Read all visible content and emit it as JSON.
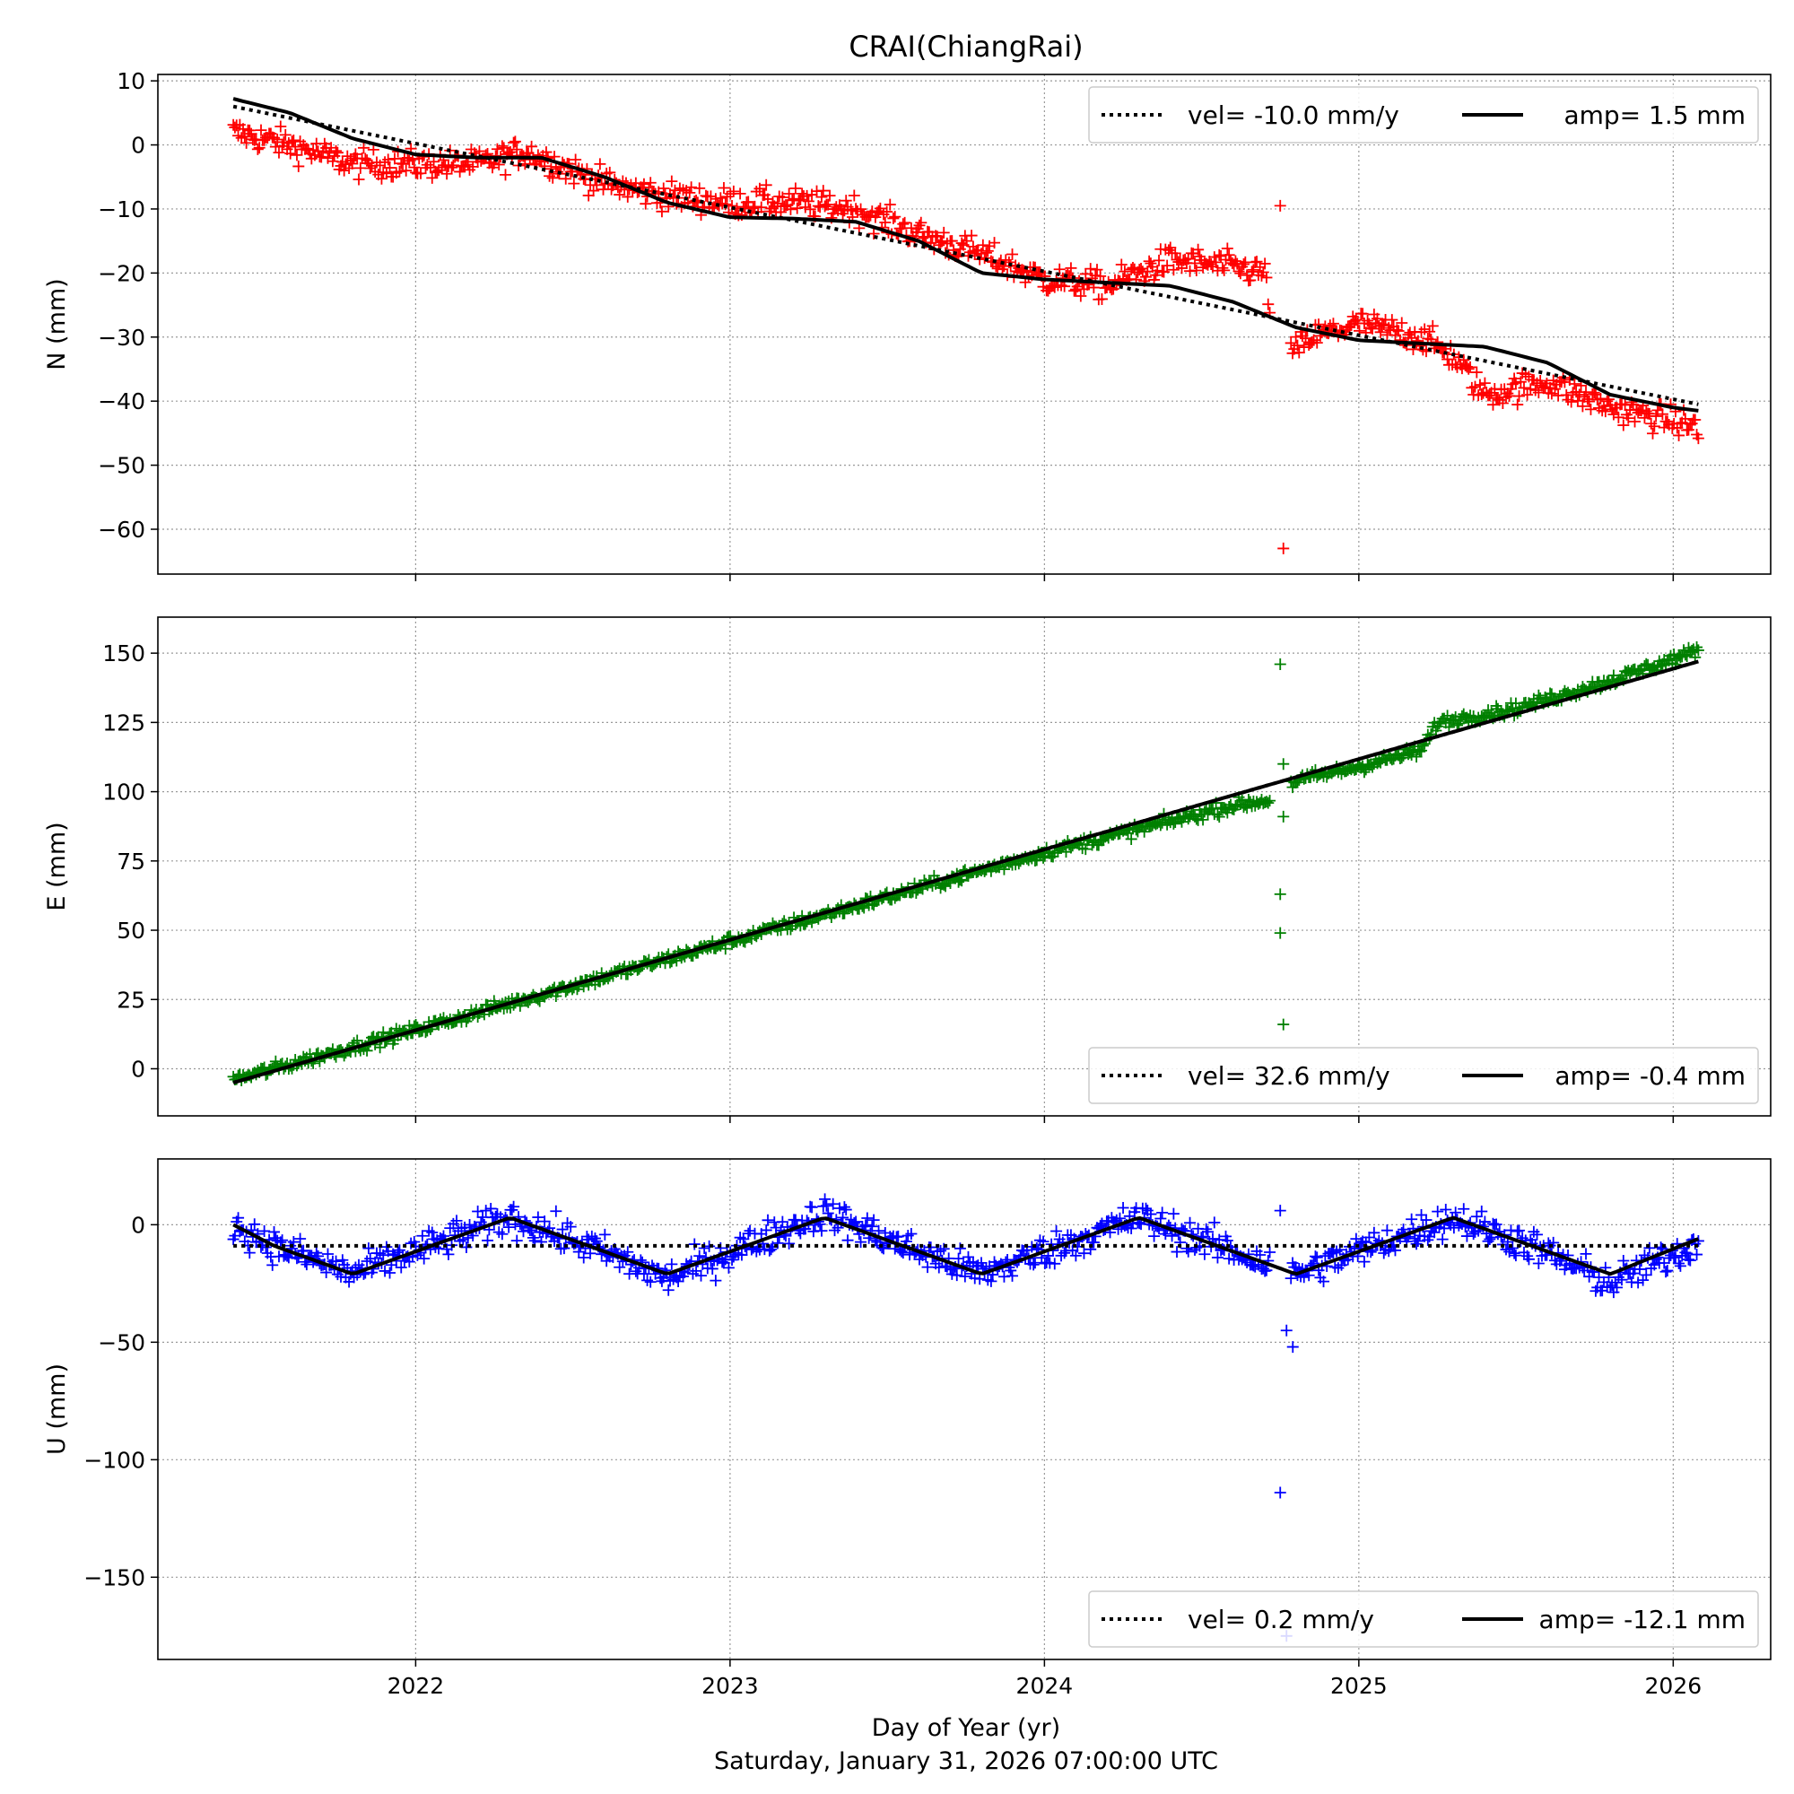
{
  "chart_data": {
    "type": "scatter",
    "title": "CRAI(ChiangRai)",
    "xlabel": "Day of Year (yr)",
    "footer": "Saturday, January 31, 2026 07:00:00 UTC",
    "xlim": [
      2021.18,
      2026.31
    ],
    "xticks": [
      2022,
      2023,
      2024,
      2025,
      2026
    ],
    "xtick_labels": [
      "2022",
      "2023",
      "2024",
      "2025",
      "2026"
    ],
    "grid": true,
    "legend_placement": "top-right",
    "panels": [
      {
        "component": "N",
        "ylabel": "N (mm)",
        "ylim": [
          -67,
          11
        ],
        "yticks": [
          10,
          0,
          -10,
          -20,
          -30,
          -40,
          -50,
          -60
        ],
        "ytick_labels": [
          "10",
          "0",
          "−10",
          "−20",
          "−30",
          "−40",
          "−50",
          "−60"
        ],
        "color": "#ff0000",
        "legend_position": "top-right",
        "vel_label": "vel= -10.0 mm/y",
        "amp_label": "amp= 1.5 mm",
        "velocity": -10.0,
        "amplitude": 1.5,
        "trend_keys": {
          "x": [
            2021.42,
            2026.08
          ],
          "y": [
            6.0,
            -40.5
          ]
        },
        "fit_keys": {
          "x": [
            2021.42,
            2021.6,
            2021.8,
            2022.0,
            2022.2,
            2022.4,
            2022.6,
            2022.8,
            2023.0,
            2023.2,
            2023.4,
            2023.6,
            2023.8,
            2024.0,
            2024.2,
            2024.4,
            2024.6,
            2024.8,
            2025.0,
            2025.2,
            2025.4,
            2025.6,
            2025.8,
            2026.0,
            2026.08
          ],
          "y": [
            7.2,
            5.0,
            1.0,
            -1.5,
            -2.0,
            -2.0,
            -5.0,
            -9.0,
            -11.3,
            -11.5,
            -12.0,
            -15.0,
            -20.0,
            -21.0,
            -21.5,
            -22.0,
            -24.5,
            -28.5,
            -30.5,
            -31.0,
            -31.5,
            -34.0,
            -39.0,
            -41.0,
            -41.5
          ]
        },
        "obs_keys": {
          "x": [
            2021.42,
            2021.6,
            2021.8,
            2022.0,
            2022.2,
            2022.35,
            2022.45,
            2022.6,
            2022.8,
            2023.0,
            2023.2,
            2023.4,
            2023.6,
            2023.8,
            2024.0,
            2024.2,
            2024.4,
            2024.6,
            2024.7,
            2024.75,
            2024.85,
            2025.0,
            2025.2,
            2025.3,
            2025.4,
            2025.6,
            2025.8,
            2026.08
          ],
          "y": [
            2.0,
            0.0,
            -3.0,
            -3.0,
            -3.0,
            -1.0,
            -3.0,
            -6.0,
            -8.0,
            -9.0,
            -9.0,
            -10.0,
            -14.0,
            -17.0,
            -21.0,
            -22.0,
            -18.0,
            -19.0,
            -20.0,
            -34.0,
            -30.0,
            -28.0,
            -30.0,
            -33.0,
            -39.0,
            -37.0,
            -41.0,
            -44.0
          ]
        },
        "noise_mm": 1.6,
        "outliers": [
          {
            "x": 2024.75,
            "y": -9.5
          },
          {
            "x": 2024.76,
            "y": -63.0
          }
        ]
      },
      {
        "component": "E",
        "ylabel": "E (mm)",
        "ylim": [
          -17,
          163
        ],
        "yticks": [
          150,
          125,
          100,
          75,
          50,
          25,
          0
        ],
        "ytick_labels": [
          "150",
          "125",
          "100",
          "75",
          "50",
          "25",
          "0"
        ],
        "color": "#008000",
        "legend_position": "bottom-right",
        "vel_label": "vel= 32.6 mm/y",
        "amp_label": "amp= -0.4 mm",
        "velocity": 32.6,
        "amplitude": -0.4,
        "trend_keys": {
          "x": [
            2021.42,
            2026.08
          ],
          "y": [
            -5.0,
            147.0
          ]
        },
        "fit_keys": {
          "x": [
            2021.42,
            2026.08
          ],
          "y": [
            -5.0,
            147.0
          ]
        },
        "obs_keys": {
          "x": [
            2021.42,
            2022.0,
            2022.5,
            2023.0,
            2023.5,
            2024.0,
            2024.6,
            2024.72,
            2024.8,
            2025.0,
            2025.2,
            2025.25,
            2025.5,
            2025.8,
            2026.08
          ],
          "y": [
            -4.0,
            14.0,
            30.0,
            46.0,
            62.0,
            78.0,
            95.0,
            97.0,
            104.0,
            109.0,
            115.0,
            125.0,
            130.0,
            140.0,
            151.0
          ]
        },
        "noise_mm": 1.6,
        "outliers": [
          {
            "x": 2024.75,
            "y": 146.0
          },
          {
            "x": 2024.76,
            "y": 110.0
          },
          {
            "x": 2024.76,
            "y": 91.0
          },
          {
            "x": 2024.75,
            "y": 63.0
          },
          {
            "x": 2024.75,
            "y": 49.0
          },
          {
            "x": 2024.76,
            "y": 16.0
          }
        ]
      },
      {
        "component": "U",
        "ylabel": "U (mm)",
        "ylim": [
          -185,
          28
        ],
        "yticks": [
          0,
          -50,
          -100,
          -150
        ],
        "ytick_labels": [
          "0",
          "−50",
          "−100",
          "−150"
        ],
        "color": "#0000ff",
        "legend_position": "bottom-right",
        "vel_label": "vel= 0.2 mm/y",
        "amp_label": "amp= -12.1 mm",
        "velocity": 0.2,
        "amplitude": -12.1,
        "trend_keys": {
          "x": [
            2021.42,
            2026.08
          ],
          "y": [
            -9.0,
            -9.0
          ]
        },
        "fit_keys": {
          "x": [
            2021.42,
            2021.55,
            2021.8,
            2022.05,
            2022.3,
            2022.55,
            2022.8,
            2023.05,
            2023.3,
            2023.55,
            2023.8,
            2024.05,
            2024.3,
            2024.55,
            2024.8,
            2025.05,
            2025.3,
            2025.55,
            2025.8,
            2026.08
          ],
          "y": [
            0.0,
            -9.0,
            -21.0,
            -9.0,
            3.0,
            -9.0,
            -21.0,
            -9.0,
            3.0,
            -9.0,
            -21.0,
            -9.0,
            3.0,
            -9.0,
            -21.0,
            -9.0,
            3.0,
            -9.0,
            -21.0,
            -6.0
          ]
        },
        "obs_keys": {
          "x": [
            2021.42,
            2021.55,
            2021.8,
            2022.05,
            2022.3,
            2022.55,
            2022.8,
            2023.05,
            2023.3,
            2023.55,
            2023.8,
            2024.05,
            2024.3,
            2024.55,
            2024.8,
            2025.05,
            2025.3,
            2025.55,
            2025.8,
            2026.08
          ],
          "y": [
            0.0,
            -9.0,
            -21.0,
            -9.0,
            3.0,
            -9.0,
            -23.0,
            -9.0,
            5.0,
            -9.0,
            -21.0,
            -9.0,
            3.0,
            -9.0,
            -21.0,
            -9.0,
            3.0,
            -9.0,
            -25.0,
            -8.0
          ]
        },
        "noise_mm": 5.0,
        "outliers": [
          {
            "x": 2024.75,
            "y": 6.0
          },
          {
            "x": 2024.77,
            "y": -45.0
          },
          {
            "x": 2024.79,
            "y": -52.0
          },
          {
            "x": 2024.75,
            "y": -114.0
          },
          {
            "x": 2024.77,
            "y": -175.0
          }
        ]
      }
    ]
  }
}
